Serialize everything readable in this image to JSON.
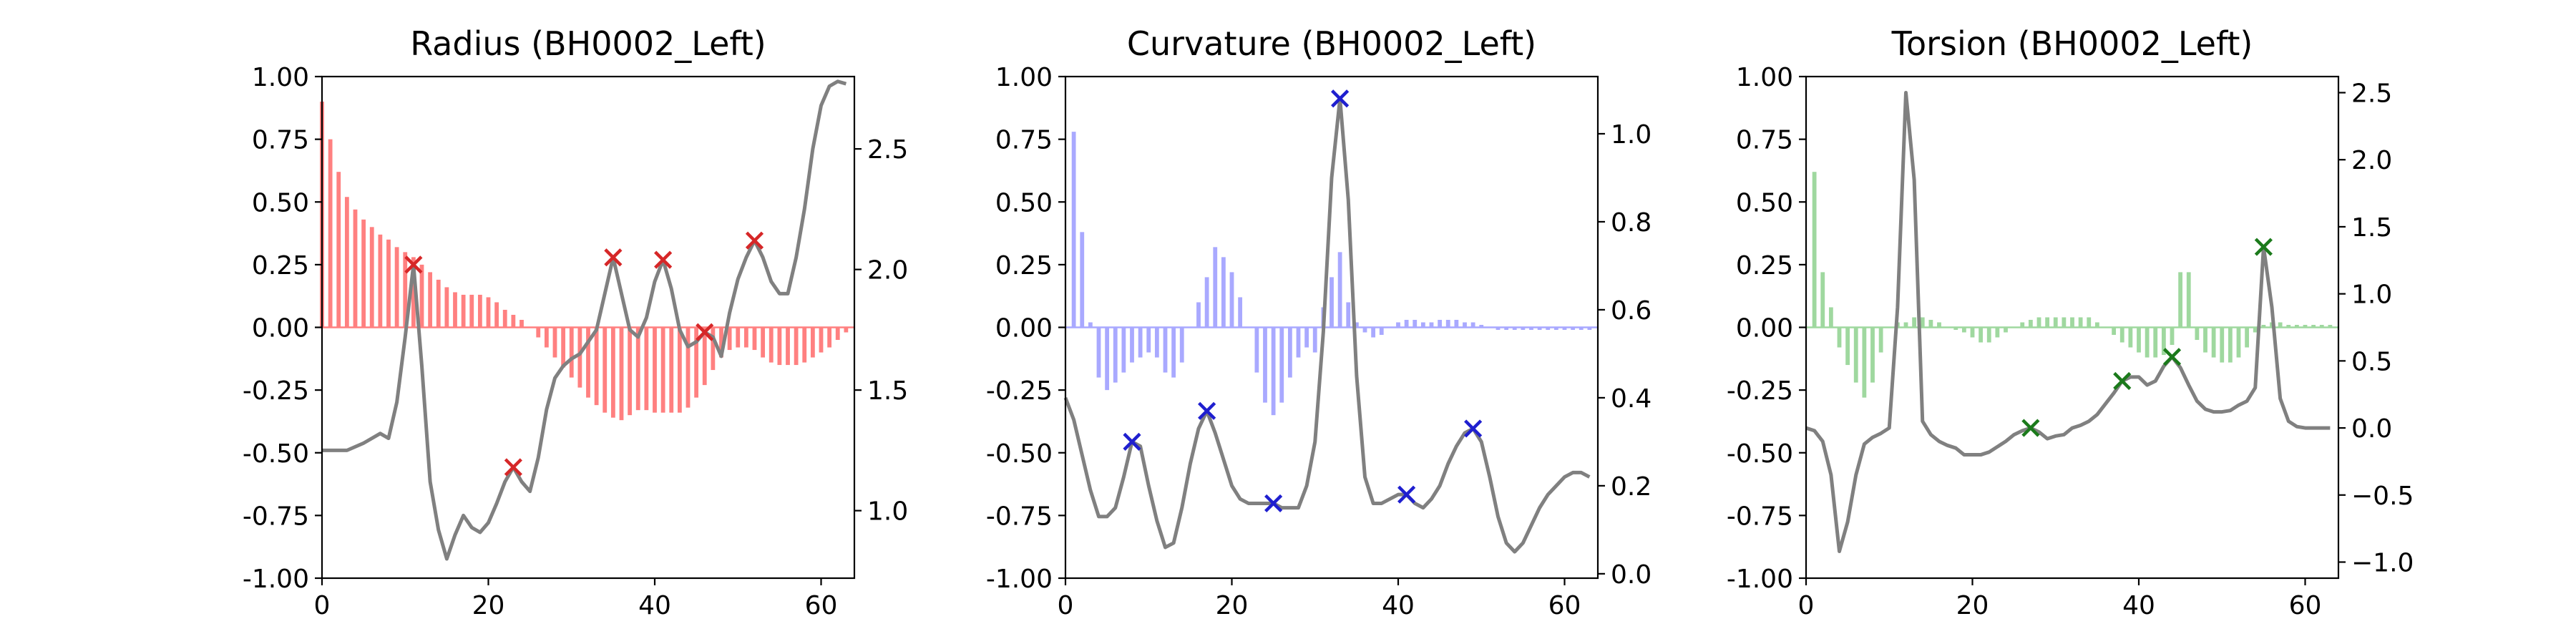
{
  "figure": {
    "background": "#ffffff"
  },
  "chart_data": [
    {
      "type": "bar+line",
      "title": "Radius (BH0002_Left)",
      "xlim": [
        0,
        64
      ],
      "xticks": [
        0,
        20,
        40,
        60
      ],
      "left_ylim": [
        -1.0,
        1.0
      ],
      "left_yticks": [
        "-1.00",
        "-0.75",
        "-0.50",
        "-0.25",
        "0.00",
        "0.25",
        "0.50",
        "0.75",
        "1.00"
      ],
      "right_ylim": [
        0.72,
        2.8
      ],
      "right_yticks": [
        "1.0",
        "1.5",
        "2.0",
        "2.5"
      ],
      "bar_color": "#ff8080",
      "bar_values": [
        0.9,
        0.75,
        0.62,
        0.52,
        0.47,
        0.43,
        0.4,
        0.37,
        0.35,
        0.32,
        0.3,
        0.28,
        0.25,
        0.22,
        0.19,
        0.16,
        0.14,
        0.13,
        0.13,
        0.13,
        0.12,
        0.1,
        0.07,
        0.05,
        0.03,
        0.0,
        -0.04,
        -0.08,
        -0.12,
        -0.16,
        -0.2,
        -0.24,
        -0.28,
        -0.31,
        -0.34,
        -0.36,
        -0.37,
        -0.35,
        -0.33,
        -0.33,
        -0.34,
        -0.34,
        -0.34,
        -0.34,
        -0.32,
        -0.28,
        -0.23,
        -0.17,
        -0.12,
        -0.09,
        -0.08,
        -0.08,
        -0.09,
        -0.12,
        -0.14,
        -0.15,
        -0.15,
        -0.15,
        -0.14,
        -0.12,
        -0.1,
        -0.08,
        -0.05,
        -0.02
      ],
      "line_color": "#808080",
      "line_points": [
        [
          0,
          1.25
        ],
        [
          3,
          1.25
        ],
        [
          5,
          1.28
        ],
        [
          7,
          1.32
        ],
        [
          8,
          1.3
        ],
        [
          9,
          1.45
        ],
        [
          10,
          1.72
        ],
        [
          11,
          2.02
        ],
        [
          12,
          1.6
        ],
        [
          13,
          1.12
        ],
        [
          14,
          0.92
        ],
        [
          15,
          0.8
        ],
        [
          16,
          0.9
        ],
        [
          17,
          0.98
        ],
        [
          18,
          0.93
        ],
        [
          19,
          0.91
        ],
        [
          20,
          0.95
        ],
        [
          21,
          1.03
        ],
        [
          22,
          1.12
        ],
        [
          23,
          1.18
        ],
        [
          24,
          1.12
        ],
        [
          25,
          1.08
        ],
        [
          26,
          1.22
        ],
        [
          27,
          1.42
        ],
        [
          28,
          1.55
        ],
        [
          29,
          1.6
        ],
        [
          30,
          1.63
        ],
        [
          31,
          1.65
        ],
        [
          32,
          1.7
        ],
        [
          33,
          1.75
        ],
        [
          34,
          1.9
        ],
        [
          35,
          2.05
        ],
        [
          36,
          1.9
        ],
        [
          37,
          1.75
        ],
        [
          38,
          1.72
        ],
        [
          39,
          1.8
        ],
        [
          40,
          1.95
        ],
        [
          41,
          2.04
        ],
        [
          42,
          1.92
        ],
        [
          43,
          1.75
        ],
        [
          44,
          1.68
        ],
        [
          45,
          1.7
        ],
        [
          46,
          1.74
        ],
        [
          47,
          1.72
        ],
        [
          48,
          1.64
        ],
        [
          49,
          1.82
        ],
        [
          50,
          1.96
        ],
        [
          51,
          2.05
        ],
        [
          52,
          2.12
        ],
        [
          53,
          2.05
        ],
        [
          54,
          1.95
        ],
        [
          55,
          1.9
        ],
        [
          56,
          1.9
        ],
        [
          57,
          2.05
        ],
        [
          58,
          2.25
        ],
        [
          59,
          2.5
        ],
        [
          60,
          2.68
        ],
        [
          61,
          2.76
        ],
        [
          62,
          2.78
        ],
        [
          63,
          2.77
        ]
      ],
      "marker_color": "#d62728",
      "markers": [
        [
          11,
          2.02
        ],
        [
          23,
          1.18
        ],
        [
          35,
          2.05
        ],
        [
          41,
          2.04
        ],
        [
          46,
          1.74
        ],
        [
          52,
          2.12
        ]
      ]
    },
    {
      "type": "bar+line",
      "title": "Curvature (BH0002_Left)",
      "xlim": [
        0,
        64
      ],
      "xticks": [
        0,
        20,
        40,
        60
      ],
      "left_ylim": [
        -1.0,
        1.0
      ],
      "left_yticks": [
        "-1.00",
        "-0.75",
        "-0.50",
        "-0.25",
        "0.00",
        "0.25",
        "0.50",
        "0.75",
        "1.00"
      ],
      "right_ylim": [
        -0.01,
        1.13
      ],
      "right_yticks": [
        "0.0",
        "0.2",
        "0.4",
        "0.6",
        "0.8",
        "1.0"
      ],
      "bar_color": "#a9a9ff",
      "bar_values": [
        0.0,
        0.78,
        0.38,
        0.02,
        -0.2,
        -0.25,
        -0.22,
        -0.18,
        -0.14,
        -0.12,
        -0.1,
        -0.12,
        -0.18,
        -0.2,
        -0.14,
        0.0,
        0.1,
        0.2,
        0.32,
        0.28,
        0.22,
        0.12,
        0.0,
        -0.18,
        -0.3,
        -0.35,
        -0.3,
        -0.2,
        -0.12,
        -0.08,
        -0.1,
        0.08,
        0.2,
        0.3,
        0.1,
        0.02,
        -0.02,
        -0.04,
        -0.03,
        0.0,
        0.02,
        0.03,
        0.03,
        0.02,
        0.02,
        0.03,
        0.03,
        0.03,
        0.02,
        0.02,
        0.01,
        0.0,
        -0.01,
        -0.01,
        -0.01,
        -0.01,
        -0.01,
        -0.01,
        -0.01,
        -0.01,
        -0.01,
        -0.01,
        -0.01,
        -0.01
      ],
      "line_color": "#808080",
      "line_points": [
        [
          0,
          0.4
        ],
        [
          1,
          0.35
        ],
        [
          2,
          0.27
        ],
        [
          3,
          0.19
        ],
        [
          4,
          0.13
        ],
        [
          5,
          0.13
        ],
        [
          6,
          0.15
        ],
        [
          7,
          0.22
        ],
        [
          8,
          0.3
        ],
        [
          9,
          0.29
        ],
        [
          10,
          0.2
        ],
        [
          11,
          0.12
        ],
        [
          12,
          0.06
        ],
        [
          13,
          0.07
        ],
        [
          14,
          0.15
        ],
        [
          15,
          0.25
        ],
        [
          16,
          0.33
        ],
        [
          17,
          0.37
        ],
        [
          18,
          0.32
        ],
        [
          19,
          0.26
        ],
        [
          20,
          0.2
        ],
        [
          21,
          0.17
        ],
        [
          22,
          0.16
        ],
        [
          23,
          0.16
        ],
        [
          24,
          0.16
        ],
        [
          25,
          0.16
        ],
        [
          26,
          0.15
        ],
        [
          27,
          0.15
        ],
        [
          28,
          0.15
        ],
        [
          29,
          0.2
        ],
        [
          30,
          0.3
        ],
        [
          31,
          0.55
        ],
        [
          32,
          0.9
        ],
        [
          33,
          1.08
        ],
        [
          34,
          0.85
        ],
        [
          35,
          0.45
        ],
        [
          36,
          0.22
        ],
        [
          37,
          0.16
        ],
        [
          38,
          0.16
        ],
        [
          39,
          0.17
        ],
        [
          40,
          0.18
        ],
        [
          41,
          0.18
        ],
        [
          42,
          0.16
        ],
        [
          43,
          0.15
        ],
        [
          44,
          0.17
        ],
        [
          45,
          0.2
        ],
        [
          46,
          0.25
        ],
        [
          47,
          0.29
        ],
        [
          48,
          0.32
        ],
        [
          49,
          0.33
        ],
        [
          50,
          0.3
        ],
        [
          51,
          0.22
        ],
        [
          52,
          0.13
        ],
        [
          53,
          0.07
        ],
        [
          54,
          0.05
        ],
        [
          55,
          0.07
        ],
        [
          56,
          0.11
        ],
        [
          57,
          0.15
        ],
        [
          58,
          0.18
        ],
        [
          59,
          0.2
        ],
        [
          60,
          0.22
        ],
        [
          61,
          0.23
        ],
        [
          62,
          0.23
        ],
        [
          63,
          0.22
        ]
      ],
      "marker_color": "#1f1fcf",
      "markers": [
        [
          8,
          0.3
        ],
        [
          17,
          0.37
        ],
        [
          25,
          0.16
        ],
        [
          33,
          1.08
        ],
        [
          41,
          0.18
        ],
        [
          49,
          0.33
        ]
      ]
    },
    {
      "type": "bar+line",
      "title": "Torsion (BH0002_Left)",
      "xlim": [
        0,
        64
      ],
      "xticks": [
        0,
        20,
        40,
        60
      ],
      "left_ylim": [
        -1.0,
        1.0
      ],
      "left_yticks": [
        "-1.00",
        "-0.75",
        "-0.50",
        "-0.25",
        "0.00",
        "0.25",
        "0.50",
        "0.75",
        "1.00"
      ],
      "right_ylim": [
        -1.12,
        2.62
      ],
      "right_yticks": [
        "−1.0",
        "−0.5",
        "0.0",
        "0.5",
        "1.0",
        "1.5",
        "2.0",
        "2.5"
      ],
      "bar_color": "#9fd89f",
      "bar_values": [
        0.0,
        0.62,
        0.22,
        0.08,
        -0.08,
        -0.15,
        -0.22,
        -0.28,
        -0.22,
        -0.1,
        0.0,
        0.02,
        0.02,
        0.04,
        0.04,
        0.03,
        0.02,
        0.0,
        -0.01,
        -0.02,
        -0.04,
        -0.06,
        -0.06,
        -0.04,
        -0.02,
        0.0,
        0.02,
        0.03,
        0.04,
        0.04,
        0.04,
        0.04,
        0.04,
        0.04,
        0.04,
        0.02,
        0.0,
        -0.03,
        -0.06,
        -0.08,
        -0.1,
        -0.12,
        -0.12,
        -0.11,
        -0.07,
        0.22,
        0.22,
        -0.05,
        -0.1,
        -0.12,
        -0.14,
        -0.14,
        -0.12,
        -0.08,
        -0.02,
        0.01,
        0.02,
        0.02,
        0.01,
        0.01,
        0.01,
        0.01,
        0.01,
        0.01
      ],
      "line_color": "#808080",
      "line_points": [
        [
          0,
          0.0
        ],
        [
          1,
          -0.02
        ],
        [
          2,
          -0.1
        ],
        [
          3,
          -0.35
        ],
        [
          4,
          -0.92
        ],
        [
          5,
          -0.7
        ],
        [
          6,
          -0.35
        ],
        [
          7,
          -0.12
        ],
        [
          8,
          -0.07
        ],
        [
          9,
          -0.04
        ],
        [
          10,
          0.0
        ],
        [
          11,
          0.9
        ],
        [
          12,
          2.5
        ],
        [
          13,
          1.85
        ],
        [
          14,
          0.05
        ],
        [
          15,
          -0.05
        ],
        [
          16,
          -0.1
        ],
        [
          17,
          -0.13
        ],
        [
          18,
          -0.15
        ],
        [
          19,
          -0.2
        ],
        [
          20,
          -0.2
        ],
        [
          21,
          -0.2
        ],
        [
          22,
          -0.18
        ],
        [
          23,
          -0.14
        ],
        [
          24,
          -0.1
        ],
        [
          25,
          -0.05
        ],
        [
          26,
          -0.02
        ],
        [
          27,
          0.0
        ],
        [
          28,
          -0.03
        ],
        [
          29,
          -0.08
        ],
        [
          30,
          -0.06
        ],
        [
          31,
          -0.05
        ],
        [
          32,
          0.0
        ],
        [
          33,
          0.02
        ],
        [
          34,
          0.05
        ],
        [
          35,
          0.1
        ],
        [
          36,
          0.18
        ],
        [
          37,
          0.26
        ],
        [
          38,
          0.35
        ],
        [
          39,
          0.38
        ],
        [
          40,
          0.38
        ],
        [
          41,
          0.32
        ],
        [
          42,
          0.35
        ],
        [
          43,
          0.46
        ],
        [
          44,
          0.53
        ],
        [
          45,
          0.45
        ],
        [
          46,
          0.32
        ],
        [
          47,
          0.2
        ],
        [
          48,
          0.14
        ],
        [
          49,
          0.12
        ],
        [
          50,
          0.12
        ],
        [
          51,
          0.13
        ],
        [
          52,
          0.17
        ],
        [
          53,
          0.2
        ],
        [
          54,
          0.3
        ],
        [
          55,
          1.35
        ],
        [
          56,
          0.9
        ],
        [
          57,
          0.22
        ],
        [
          58,
          0.05
        ],
        [
          59,
          0.01
        ],
        [
          60,
          0.0
        ],
        [
          61,
          0.0
        ],
        [
          62,
          0.0
        ],
        [
          63,
          0.0
        ]
      ],
      "marker_color": "#1b7a1b",
      "markers": [
        [
          27,
          0.0
        ],
        [
          38,
          0.35
        ],
        [
          44,
          0.53
        ],
        [
          55,
          1.35
        ]
      ]
    }
  ]
}
